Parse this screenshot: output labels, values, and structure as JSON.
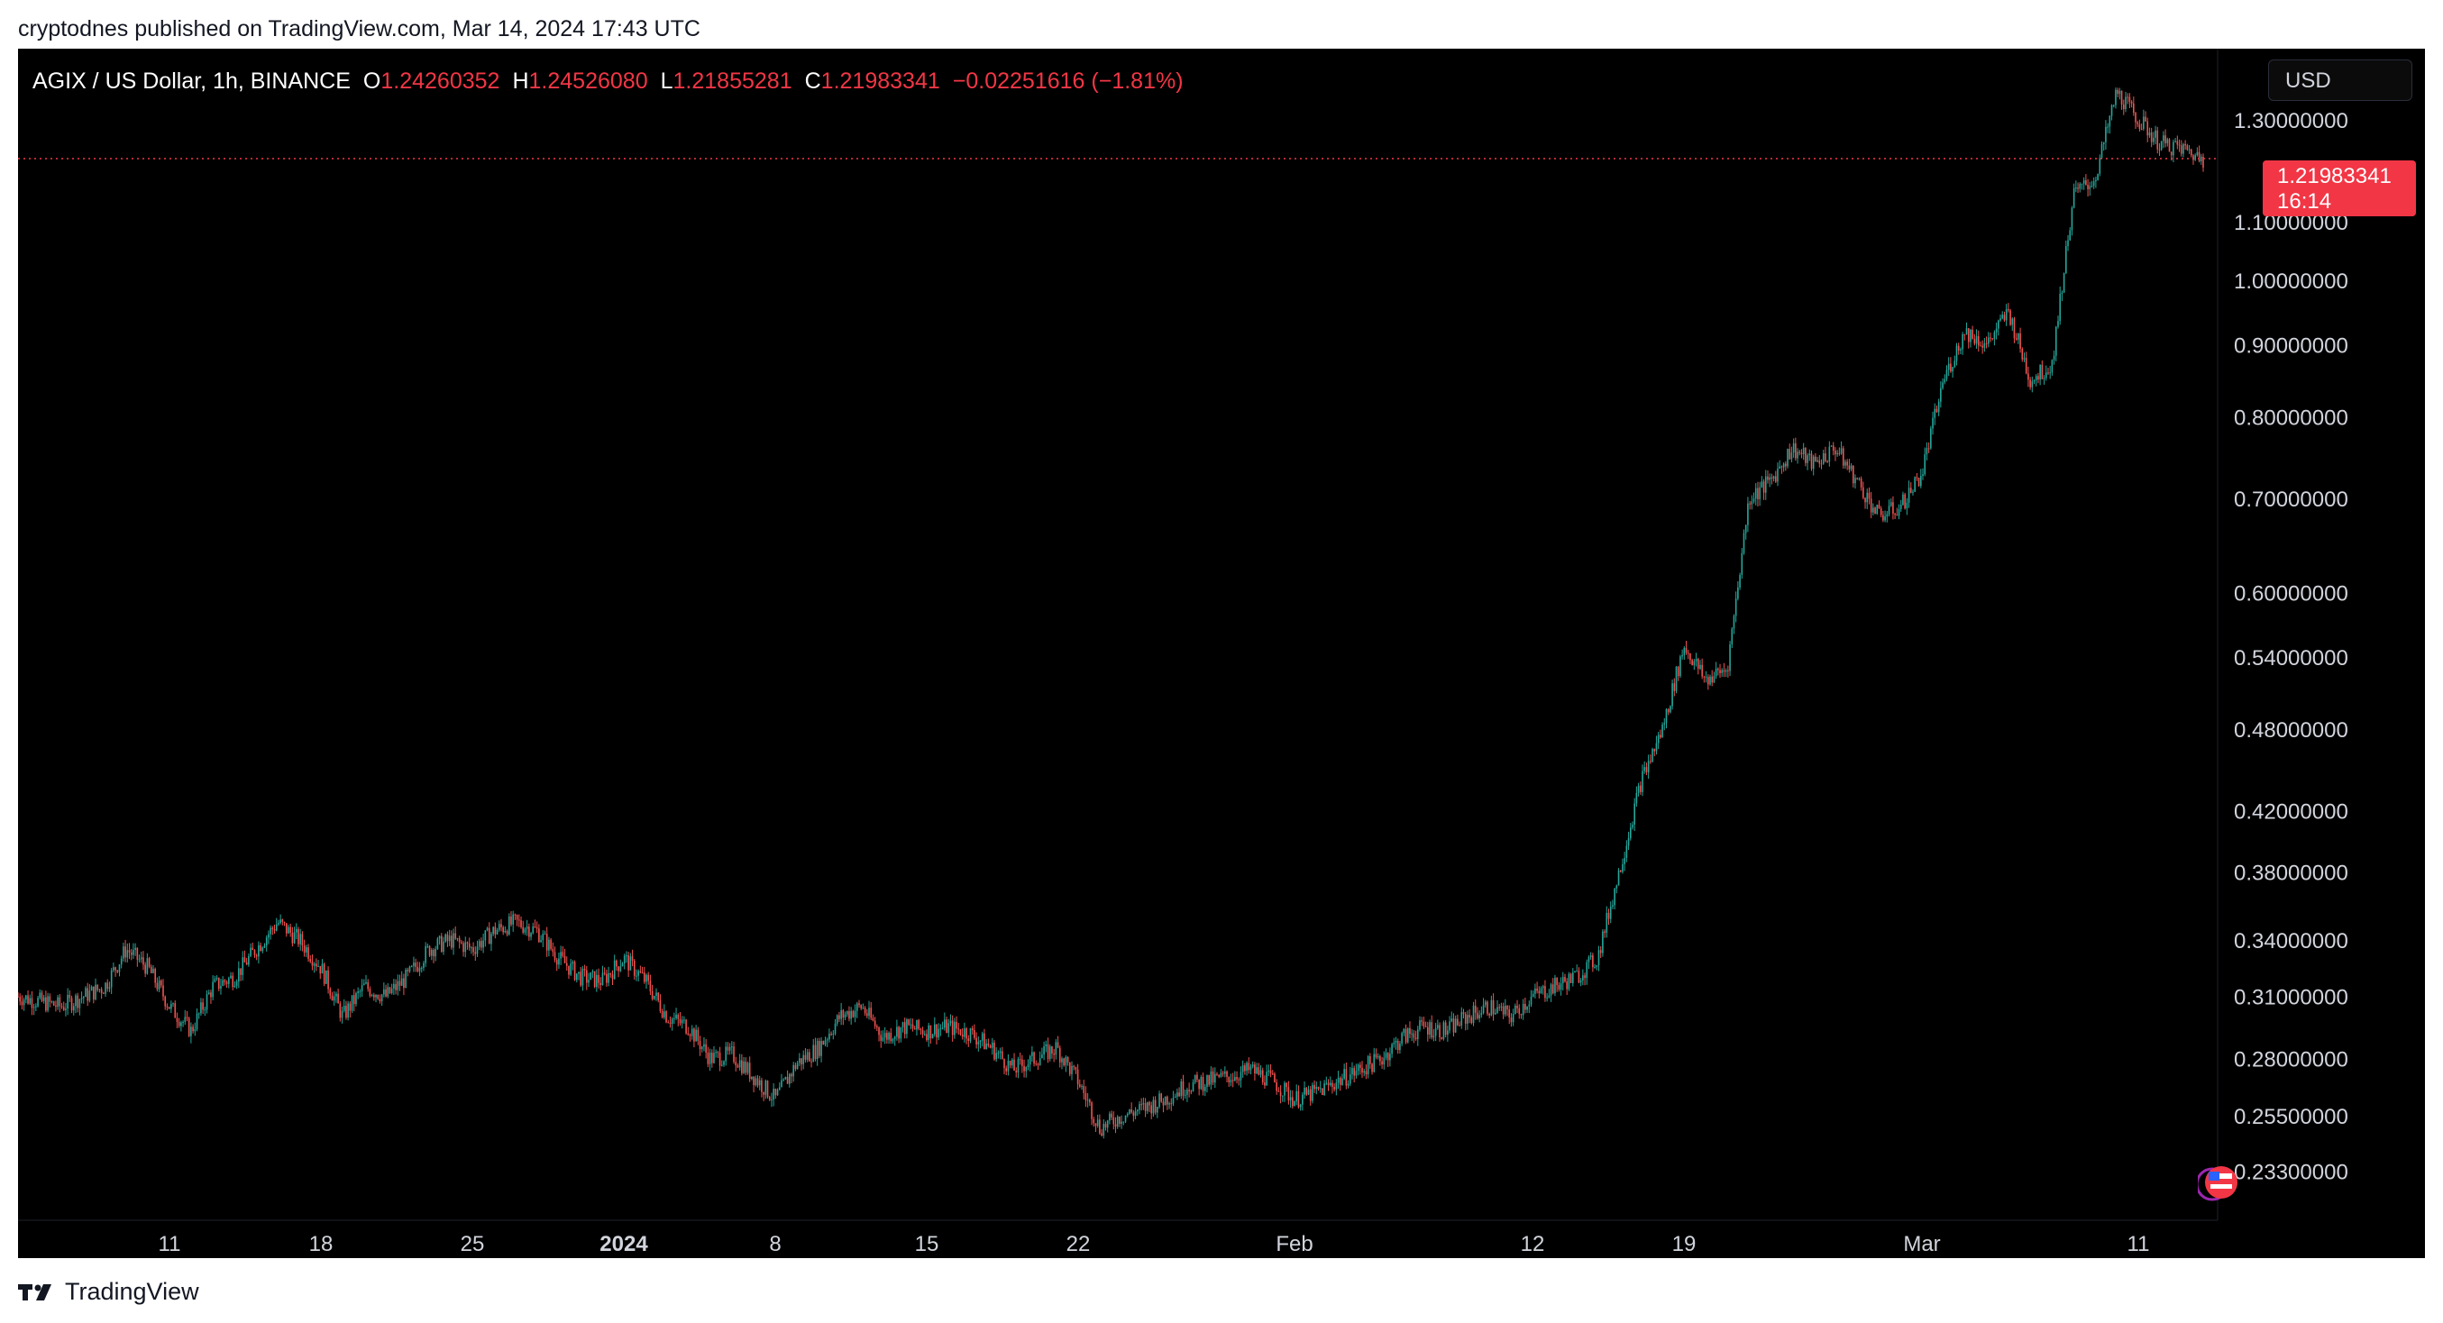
{
  "header": {
    "published": "cryptodnes published on TradingView.com, Mar 14, 2024 17:43 UTC"
  },
  "legend": {
    "symbol": "AGIX / US Dollar, 1h, BINANCE",
    "open_label": "O",
    "open_value": "1.24260352",
    "high_label": "H",
    "high_value": "1.24526080",
    "low_label": "L",
    "low_value": "1.21855281",
    "close_label": "C",
    "close_value": "1.21983341",
    "change": "−0.02251616 (−1.81%)"
  },
  "currency_button": {
    "label": "USD"
  },
  "price_badge": {
    "price": "1.21983341",
    "countdown": "16:14"
  },
  "footer": {
    "brand": "TradingView",
    "logo_icon": "tradingview-logo-icon"
  },
  "icons": {
    "flag": "us-flag-icon",
    "logo": "tradingview-logo-icon"
  },
  "colors": {
    "background": "#000000",
    "up": "#26a69a",
    "down": "#ef5350",
    "last_price": "#f23645",
    "axis_text": "#d1d4dc"
  },
  "chart_data": {
    "type": "line",
    "title": "AGIX / US Dollar, 1h, BINANCE",
    "scale": "log",
    "grid": false,
    "ylim": [
      0.215,
      1.46
    ],
    "y_ticks": [
      1.3,
      1.1,
      1.0,
      0.9,
      0.8,
      0.7,
      0.6,
      0.54,
      0.48,
      0.42,
      0.38,
      0.34,
      0.31,
      0.28,
      0.255,
      0.233
    ],
    "y_tick_labels": [
      "1.30000000",
      "1.10000000",
      "1.00000000",
      "0.90000000",
      "0.80000000",
      "0.70000000",
      "0.60000000",
      "0.54000000",
      "0.48000000",
      "0.42000000",
      "0.38000000",
      "0.34000000",
      "0.31000000",
      "0.28000000",
      "0.25500000",
      "0.23300000"
    ],
    "x_ticks": [
      "2023-12-11",
      "2023-12-18",
      "2023-12-25",
      "2024-01-01",
      "2024-01-08",
      "2024-01-15",
      "2024-01-22",
      "2024-02-01",
      "2024-02-12",
      "2024-02-19",
      "2024-03-01",
      "2024-03-11"
    ],
    "x_tick_labels": [
      "11",
      "18",
      "25",
      "2024",
      "8",
      "15",
      "22",
      "Feb",
      "12",
      "19",
      "Mar",
      "11"
    ],
    "x_range": [
      "2023-12-04",
      "2024-03-14"
    ],
    "last_price": 1.21983341,
    "series": [
      {
        "style": "candlestick",
        "points": [
          {
            "x": "2023-12-04",
            "y": 0.31
          },
          {
            "x": "2023-12-06",
            "y": 0.305
          },
          {
            "x": "2023-12-08",
            "y": 0.315
          },
          {
            "x": "2023-12-09",
            "y": 0.335
          },
          {
            "x": "2023-12-10",
            "y": 0.325
          },
          {
            "x": "2023-12-11",
            "y": 0.305
          },
          {
            "x": "2023-12-12",
            "y": 0.293
          },
          {
            "x": "2023-12-13",
            "y": 0.315
          },
          {
            "x": "2023-12-14",
            "y": 0.32
          },
          {
            "x": "2023-12-15",
            "y": 0.335
          },
          {
            "x": "2023-12-16",
            "y": 0.35
          },
          {
            "x": "2023-12-17",
            "y": 0.34
          },
          {
            "x": "2023-12-18",
            "y": 0.325
          },
          {
            "x": "2023-12-19",
            "y": 0.3
          },
          {
            "x": "2023-12-20",
            "y": 0.315
          },
          {
            "x": "2023-12-21",
            "y": 0.31
          },
          {
            "x": "2023-12-22",
            "y": 0.32
          },
          {
            "x": "2023-12-23",
            "y": 0.335
          },
          {
            "x": "2023-12-24",
            "y": 0.34
          },
          {
            "x": "2023-12-25",
            "y": 0.335
          },
          {
            "x": "2023-12-26",
            "y": 0.345
          },
          {
            "x": "2023-12-27",
            "y": 0.35
          },
          {
            "x": "2023-12-28",
            "y": 0.345
          },
          {
            "x": "2023-12-29",
            "y": 0.33
          },
          {
            "x": "2023-12-30",
            "y": 0.32
          },
          {
            "x": "2023-12-31",
            "y": 0.318
          },
          {
            "x": "2024-01-01",
            "y": 0.33
          },
          {
            "x": "2024-01-02",
            "y": 0.318
          },
          {
            "x": "2024-01-03",
            "y": 0.3
          },
          {
            "x": "2024-01-04",
            "y": 0.295
          },
          {
            "x": "2024-01-05",
            "y": 0.28
          },
          {
            "x": "2024-01-06",
            "y": 0.282
          },
          {
            "x": "2024-01-07",
            "y": 0.272
          },
          {
            "x": "2024-01-08",
            "y": 0.262
          },
          {
            "x": "2024-01-09",
            "y": 0.278
          },
          {
            "x": "2024-01-10",
            "y": 0.285
          },
          {
            "x": "2024-01-11",
            "y": 0.3
          },
          {
            "x": "2024-01-12",
            "y": 0.305
          },
          {
            "x": "2024-01-13",
            "y": 0.29
          },
          {
            "x": "2024-01-14",
            "y": 0.295
          },
          {
            "x": "2024-01-15",
            "y": 0.293
          },
          {
            "x": "2024-01-16",
            "y": 0.295
          },
          {
            "x": "2024-01-17",
            "y": 0.292
          },
          {
            "x": "2024-01-18",
            "y": 0.285
          },
          {
            "x": "2024-01-19",
            "y": 0.275
          },
          {
            "x": "2024-01-20",
            "y": 0.28
          },
          {
            "x": "2024-01-21",
            "y": 0.285
          },
          {
            "x": "2024-01-22",
            "y": 0.27
          },
          {
            "x": "2024-01-23",
            "y": 0.25
          },
          {
            "x": "2024-01-24",
            "y": 0.255
          },
          {
            "x": "2024-01-25",
            "y": 0.258
          },
          {
            "x": "2024-01-26",
            "y": 0.262
          },
          {
            "x": "2024-01-27",
            "y": 0.268
          },
          {
            "x": "2024-01-28",
            "y": 0.27
          },
          {
            "x": "2024-01-29",
            "y": 0.272
          },
          {
            "x": "2024-01-30",
            "y": 0.275
          },
          {
            "x": "2024-01-31",
            "y": 0.27
          },
          {
            "x": "2024-02-01",
            "y": 0.262
          },
          {
            "x": "2024-02-02",
            "y": 0.265
          },
          {
            "x": "2024-02-03",
            "y": 0.27
          },
          {
            "x": "2024-02-04",
            "y": 0.275
          },
          {
            "x": "2024-02-05",
            "y": 0.28
          },
          {
            "x": "2024-02-06",
            "y": 0.29
          },
          {
            "x": "2024-02-07",
            "y": 0.295
          },
          {
            "x": "2024-02-08",
            "y": 0.293
          },
          {
            "x": "2024-02-09",
            "y": 0.3
          },
          {
            "x": "2024-02-10",
            "y": 0.305
          },
          {
            "x": "2024-02-11",
            "y": 0.3
          },
          {
            "x": "2024-02-12",
            "y": 0.31
          },
          {
            "x": "2024-02-13",
            "y": 0.315
          },
          {
            "x": "2024-02-14",
            "y": 0.32
          },
          {
            "x": "2024-02-15",
            "y": 0.33
          },
          {
            "x": "2024-02-16",
            "y": 0.38
          },
          {
            "x": "2024-02-17",
            "y": 0.44
          },
          {
            "x": "2024-02-18",
            "y": 0.48
          },
          {
            "x": "2024-02-19",
            "y": 0.55
          },
          {
            "x": "2024-02-20",
            "y": 0.52
          },
          {
            "x": "2024-02-21",
            "y": 0.53
          },
          {
            "x": "2024-02-22",
            "y": 0.7
          },
          {
            "x": "2024-02-23",
            "y": 0.72
          },
          {
            "x": "2024-02-24",
            "y": 0.76
          },
          {
            "x": "2024-02-25",
            "y": 0.74
          },
          {
            "x": "2024-02-26",
            "y": 0.76
          },
          {
            "x": "2024-02-27",
            "y": 0.72
          },
          {
            "x": "2024-02-28",
            "y": 0.68
          },
          {
            "x": "2024-02-29",
            "y": 0.69
          },
          {
            "x": "2024-03-01",
            "y": 0.73
          },
          {
            "x": "2024-03-02",
            "y": 0.85
          },
          {
            "x": "2024-03-03",
            "y": 0.92
          },
          {
            "x": "2024-03-04",
            "y": 0.9
          },
          {
            "x": "2024-03-05",
            "y": 0.95
          },
          {
            "x": "2024-03-06",
            "y": 0.85
          },
          {
            "x": "2024-03-07",
            "y": 0.87
          },
          {
            "x": "2024-03-08",
            "y": 1.15
          },
          {
            "x": "2024-03-09",
            "y": 1.18
          },
          {
            "x": "2024-03-10",
            "y": 1.36
          },
          {
            "x": "2024-03-11",
            "y": 1.3
          },
          {
            "x": "2024-03-12",
            "y": 1.25
          },
          {
            "x": "2024-03-13",
            "y": 1.24
          },
          {
            "x": "2024-03-14",
            "y": 1.22
          }
        ]
      }
    ]
  }
}
